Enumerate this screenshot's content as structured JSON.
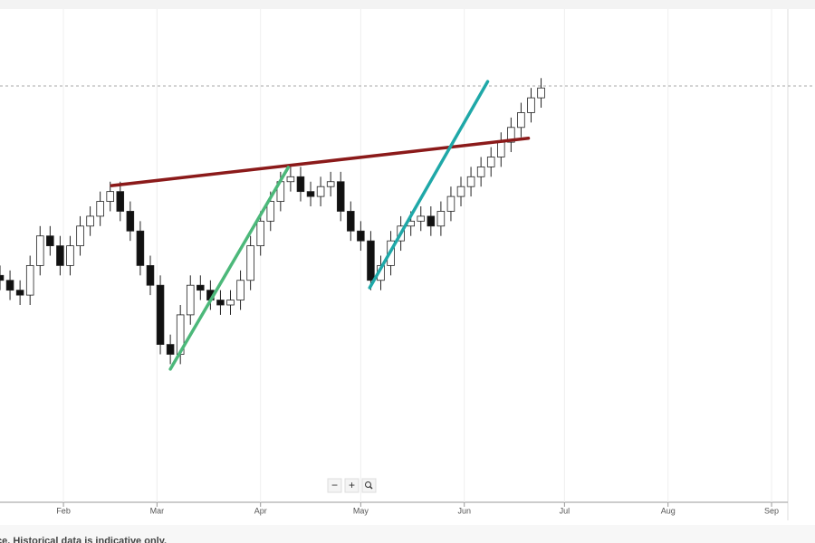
{
  "chart_data": {
    "type": "candlestick",
    "x": [
      12,
      15,
      18,
      21,
      24,
      27,
      30,
      33,
      36,
      39,
      42,
      45,
      48,
      51,
      54,
      57,
      60,
      63,
      66,
      69,
      72,
      75,
      78,
      81,
      84,
      87,
      90,
      93,
      96,
      99,
      102,
      105,
      108,
      111,
      114,
      117,
      120,
      123,
      126,
      129,
      132,
      135,
      138,
      141,
      144,
      147,
      150,
      153,
      156,
      159,
      162,
      165,
      168,
      171,
      174
    ],
    "open": [
      46,
      45,
      43,
      42,
      48,
      54,
      52,
      48,
      52,
      56,
      58,
      61,
      63,
      59,
      55,
      48,
      44,
      32,
      30,
      38,
      44,
      43,
      41,
      40,
      41,
      45,
      52,
      57,
      61,
      65,
      66,
      63,
      62,
      64,
      65,
      59,
      55,
      53,
      45,
      48,
      53,
      56,
      57,
      58,
      56,
      59,
      62,
      64,
      66,
      68,
      70,
      73,
      76,
      79,
      82
    ],
    "high": [
      48,
      47,
      45,
      50,
      56,
      56,
      54,
      54,
      58,
      60,
      63,
      65,
      65,
      61,
      57,
      50,
      46,
      34,
      40,
      46,
      46,
      45,
      43,
      43,
      47,
      54,
      59,
      63,
      67,
      68,
      68,
      65,
      66,
      67,
      67,
      61,
      57,
      55,
      50,
      55,
      58,
      59,
      60,
      60,
      61,
      64,
      66,
      68,
      70,
      72,
      75,
      78,
      81,
      84,
      86
    ],
    "low": [
      43,
      41,
      40,
      40,
      46,
      50,
      46,
      46,
      50,
      54,
      56,
      59,
      57,
      53,
      46,
      42,
      30,
      28,
      28,
      36,
      41,
      39,
      38,
      38,
      39,
      43,
      50,
      55,
      59,
      63,
      61,
      60,
      60,
      62,
      57,
      53,
      51,
      43,
      43,
      46,
      51,
      54,
      55,
      54,
      54,
      57,
      60,
      62,
      64,
      66,
      68,
      71,
      74,
      77,
      80
    ],
    "close": [
      45,
      43,
      42,
      48,
      54,
      52,
      48,
      52,
      56,
      58,
      61,
      63,
      59,
      55,
      48,
      44,
      32,
      30,
      38,
      44,
      43,
      41,
      40,
      41,
      45,
      52,
      57,
      61,
      65,
      66,
      63,
      62,
      64,
      65,
      59,
      55,
      53,
      45,
      48,
      53,
      56,
      57,
      58,
      56,
      59,
      62,
      64,
      66,
      68,
      70,
      73,
      76,
      79,
      82,
      84
    ],
    "up_color": "#ffffff",
    "down_color": "#111111",
    "wick_color": "#222222",
    "xlim": [
      12,
      256
    ],
    "ylim": [
      0,
      100
    ],
    "xticks": [
      {
        "value": 31,
        "label": "Feb"
      },
      {
        "value": 59,
        "label": "Mar"
      },
      {
        "value": 90,
        "label": "Apr"
      },
      {
        "value": 120,
        "label": "May"
      },
      {
        "value": 151,
        "label": "Jun"
      },
      {
        "value": 181,
        "label": "Jul"
      },
      {
        "value": 212,
        "label": "Aug"
      },
      {
        "value": 243,
        "label": "Sep"
      }
    ],
    "grid": true,
    "price_line": {
      "value": 84.4,
      "color": "#aaaaaa"
    },
    "trendlines": [
      {
        "color": "#8b1a1a",
        "x": [
          45.4,
          170.2
        ],
        "y": [
          64.2,
          73.8
        ]
      },
      {
        "color": "#4cb87a",
        "x": [
          63,
          98.3
        ],
        "y": [
          27,
          67.9
        ]
      },
      {
        "color": "#1fa8a8",
        "x": [
          122.7,
          158
        ],
        "y": [
          43.5,
          85.3
        ]
      }
    ]
  },
  "zoom_controls": [
    "−",
    "+"
  ],
  "footer_note": "ce. Historical data is indicative only."
}
